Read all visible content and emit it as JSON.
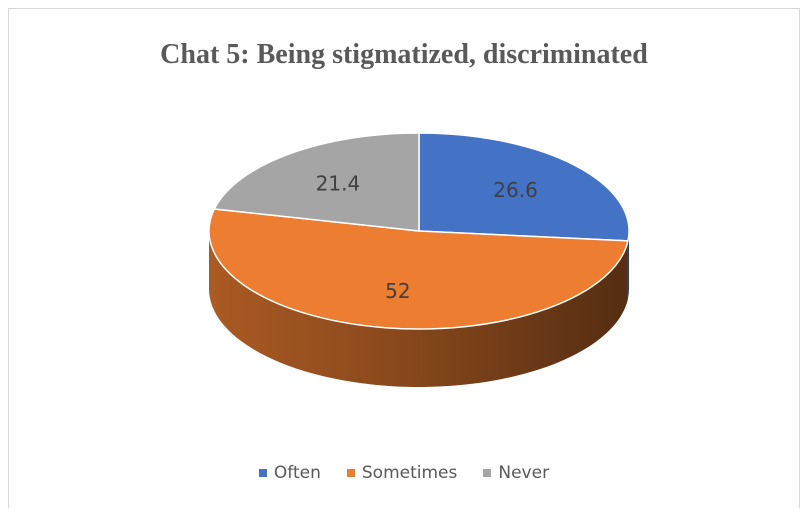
{
  "chart_data": {
    "type": "pie",
    "title": "Chat 5: Being stigmatized, discriminated",
    "categories": [
      "Often",
      "Sometimes",
      "Never"
    ],
    "values": [
      26.6,
      52,
      21.4
    ],
    "data_labels": [
      "26.6",
      "52",
      "21.4"
    ],
    "colors": [
      "#4472c4",
      "#ed7d31",
      "#a5a5a5"
    ],
    "style": "3d",
    "legend_position": "bottom"
  }
}
